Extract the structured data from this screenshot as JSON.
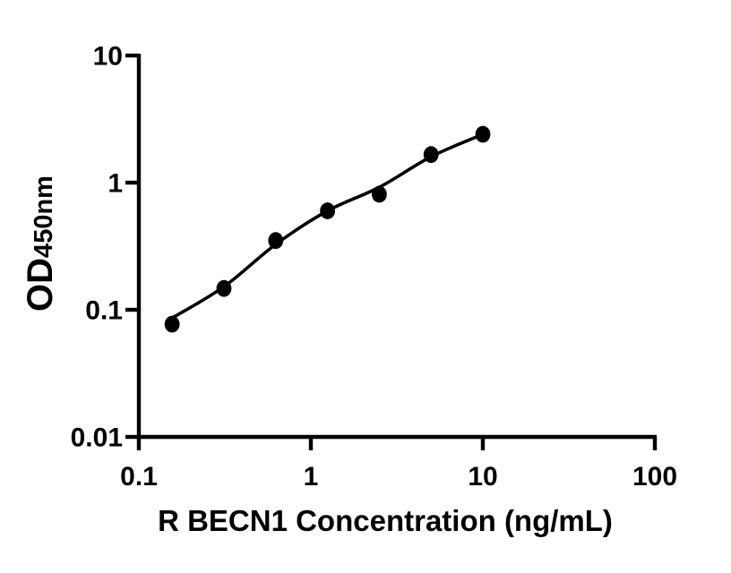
{
  "chart_data": {
    "type": "scatter",
    "title": "",
    "xlabel": "R BECN1 Concentration (ng/mL)",
    "ylabel": "OD",
    "ylabel_subscript": "450nm",
    "x_scale": "log",
    "y_scale": "log",
    "xlim": [
      0.1,
      100
    ],
    "ylim": [
      0.01,
      10
    ],
    "x_tick_labels": [
      "0.1",
      "1",
      "10",
      "100"
    ],
    "y_tick_labels": [
      "10",
      "1",
      "0.1",
      "0.01"
    ],
    "grid": false,
    "legend": "none",
    "series": [
      {
        "name": "standard-points",
        "marker": "filled-circle",
        "x": [
          0.156,
          0.3125,
          0.625,
          1.25,
          2.5,
          5,
          10
        ],
        "y": [
          0.077,
          0.147,
          0.35,
          0.6,
          0.81,
          1.66,
          2.4
        ]
      },
      {
        "name": "fitted-curve",
        "marker": "none",
        "x": [
          0.156,
          0.3125,
          0.625,
          1.25,
          2.5,
          5,
          10
        ],
        "y": [
          0.086,
          0.152,
          0.327,
          0.6,
          0.92,
          1.6,
          2.4
        ]
      }
    ],
    "colors": {
      "marker": "#000000",
      "curve": "#000000",
      "axis": "#000000",
      "text": "#000000",
      "background": "#ffffff"
    }
  }
}
